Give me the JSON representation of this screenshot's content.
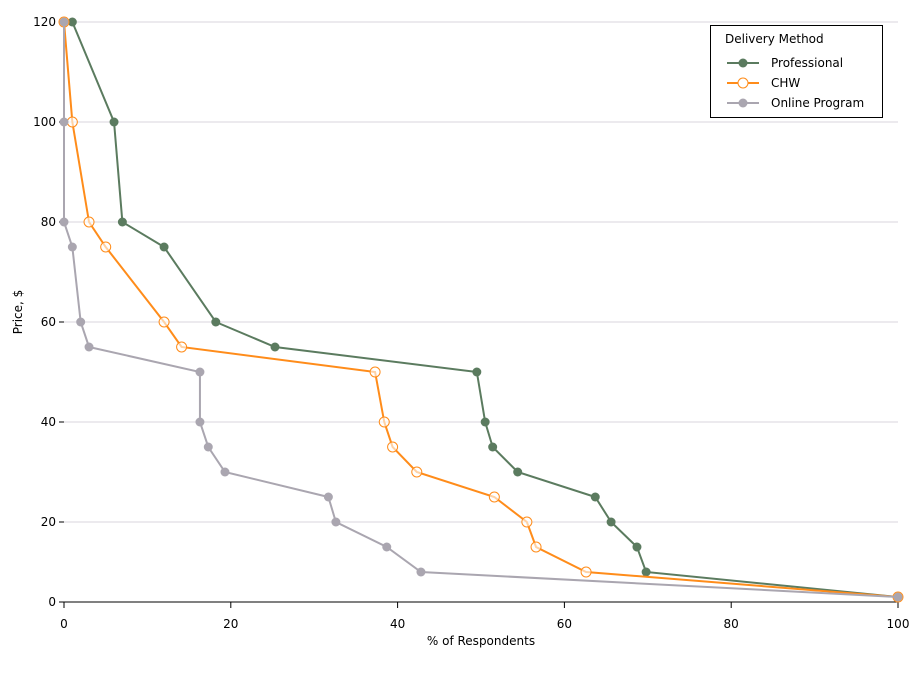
{
  "chart_data": {
    "type": "line",
    "xlabel": "% of Respondents",
    "ylabel": "Price, $",
    "xlim": [
      0,
      100
    ],
    "ylim": [
      0,
      120
    ],
    "xticks": [
      0,
      20,
      40,
      60,
      80,
      100
    ],
    "yticks": [
      0,
      20,
      40,
      60,
      80,
      100,
      120
    ],
    "grid": "horizontal",
    "legend": {
      "title": "Delivery Method",
      "position": "top-right"
    },
    "series": [
      {
        "name": "Professional",
        "color": "#5b7b5f",
        "marker": "filled-circle",
        "points": [
          [
            1,
            120
          ],
          [
            6,
            100
          ],
          [
            7,
            80
          ],
          [
            12,
            75
          ],
          [
            18.2,
            60
          ],
          [
            25.3,
            55
          ],
          [
            49.5,
            50
          ],
          [
            50.5,
            40
          ],
          [
            51.4,
            35
          ],
          [
            54.4,
            30
          ],
          [
            63.7,
            25
          ],
          [
            65.6,
            20
          ],
          [
            68.7,
            15
          ],
          [
            69.8,
            10
          ],
          [
            100,
            5
          ]
        ]
      },
      {
        "name": "CHW",
        "color": "#ff8c1a",
        "marker": "open-circle",
        "points": [
          [
            0,
            120
          ],
          [
            1,
            100
          ],
          [
            3,
            80
          ],
          [
            5,
            75
          ],
          [
            12,
            60
          ],
          [
            14.1,
            55
          ],
          [
            37.3,
            50
          ],
          [
            38.4,
            40
          ],
          [
            39.4,
            35
          ],
          [
            42.3,
            30
          ],
          [
            51.6,
            25
          ],
          [
            55.5,
            20
          ],
          [
            56.6,
            15
          ],
          [
            62.6,
            10
          ],
          [
            100,
            5
          ]
        ]
      },
      {
        "name": "Online Program",
        "color": "#aaa6b0",
        "marker": "filled-circle",
        "points": [
          [
            0,
            120
          ],
          [
            0,
            100
          ],
          [
            0,
            80
          ],
          [
            1,
            75
          ],
          [
            2,
            60
          ],
          [
            3,
            55
          ],
          [
            16.3,
            50
          ],
          [
            16.3,
            40
          ],
          [
            17.3,
            35
          ],
          [
            19.3,
            30
          ],
          [
            31.7,
            25
          ],
          [
            32.6,
            20
          ],
          [
            38.7,
            15
          ],
          [
            42.8,
            10
          ],
          [
            100,
            5
          ]
        ]
      }
    ]
  }
}
